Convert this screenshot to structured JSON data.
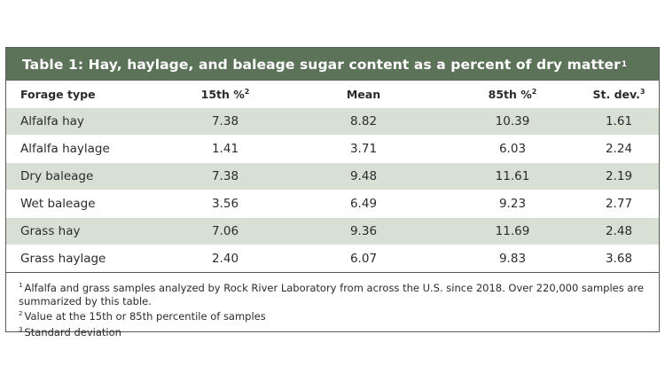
{
  "table": {
    "title": "Table 1: Hay, haylage, and baleage sugar content as a percent of dry matter",
    "title_sup": "1",
    "columns": [
      {
        "label": "Forage type",
        "sup": ""
      },
      {
        "label": "15th %",
        "sup": "2"
      },
      {
        "label": "Mean",
        "sup": ""
      },
      {
        "label": "85th %",
        "sup": "2"
      },
      {
        "label": "St. dev.",
        "sup": "3"
      }
    ],
    "rows": [
      [
        "Alfalfa hay",
        "7.38",
        "8.82",
        "10.39",
        "1.61"
      ],
      [
        "Alfalfa haylage",
        "1.41",
        "3.71",
        "6.03",
        "2.24"
      ],
      [
        "Dry baleage",
        "7.38",
        "9.48",
        "11.61",
        "2.19"
      ],
      [
        "Wet baleage",
        "3.56",
        "6.49",
        "9.23",
        "2.77"
      ],
      [
        "Grass hay",
        "7.06",
        "9.36",
        "11.69",
        "2.48"
      ],
      [
        "Grass haylage",
        "2.40",
        "6.07",
        "9.83",
        "3.68"
      ]
    ],
    "footnotes": [
      {
        "mark": "1",
        "text": "Alfalfa and grass samples analyzed by Rock River Laboratory from across the U.S. since 2018. Over 220,000 samples are summarized by this table."
      },
      {
        "mark": "2",
        "text": "Value at the 15th or 85th percentile of samples"
      },
      {
        "mark": "3",
        "text": "Standard deviation"
      }
    ]
  },
  "colors": {
    "title_bg": "#5d7359",
    "stripe": "#d8dfd5",
    "border": "#5a5a5a"
  }
}
